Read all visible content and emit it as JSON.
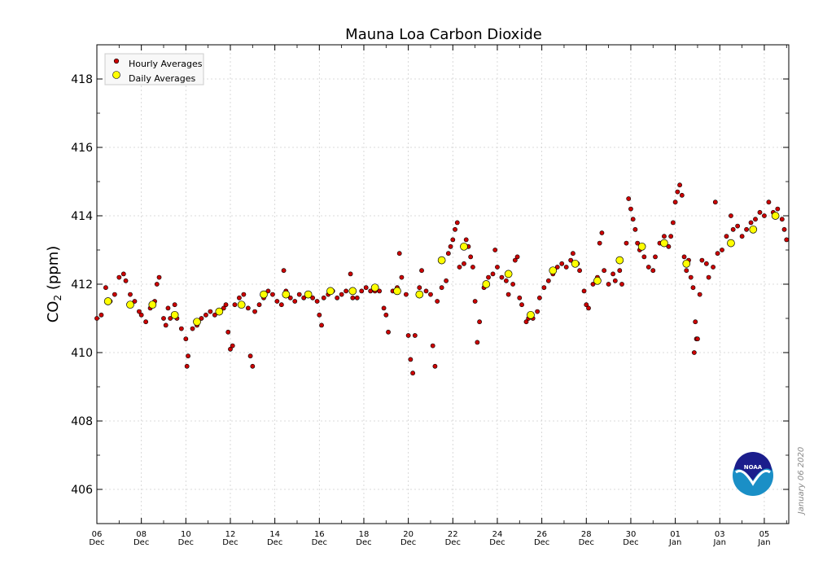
{
  "chart_data": {
    "type": "scatter",
    "title": "Mauna Loa Carbon Dioxide",
    "ylabel_main": "CO",
    "ylabel_sub": "2",
    "ylabel_units": " (ppm)",
    "xlabel": "",
    "ylim": [
      405,
      419
    ],
    "xlim": [
      0,
      31.1
    ],
    "y_ticks": [
      406,
      408,
      410,
      412,
      414,
      416,
      418
    ],
    "x_ticks": [
      {
        "x": 0,
        "day": "06",
        "month": "Dec"
      },
      {
        "x": 2,
        "day": "08",
        "month": "Dec"
      },
      {
        "x": 4,
        "day": "10",
        "month": "Dec"
      },
      {
        "x": 6,
        "day": "12",
        "month": "Dec"
      },
      {
        "x": 8,
        "day": "14",
        "month": "Dec"
      },
      {
        "x": 10,
        "day": "16",
        "month": "Dec"
      },
      {
        "x": 12,
        "day": "18",
        "month": "Dec"
      },
      {
        "x": 14,
        "day": "20",
        "month": "Dec"
      },
      {
        "x": 16,
        "day": "22",
        "month": "Dec"
      },
      {
        "x": 18,
        "day": "24",
        "month": "Dec"
      },
      {
        "x": 20,
        "day": "26",
        "month": "Dec"
      },
      {
        "x": 22,
        "day": "28",
        "month": "Dec"
      },
      {
        "x": 24,
        "day": "30",
        "month": "Dec"
      },
      {
        "x": 26,
        "day": "01",
        "month": "Jan"
      },
      {
        "x": 28,
        "day": "03",
        "month": "Jan"
      },
      {
        "x": 30,
        "day": "05",
        "month": "Jan"
      }
    ],
    "legend": {
      "position": "top-left",
      "entries": [
        "Hourly Averages",
        "Daily Averages"
      ]
    },
    "series": [
      {
        "name": "Hourly Averages",
        "color": "#cc0000",
        "points": [
          [
            0.0,
            411.0
          ],
          [
            0.2,
            411.1
          ],
          [
            0.4,
            411.9
          ],
          [
            0.6,
            411.5
          ],
          [
            0.8,
            411.7
          ],
          [
            1.0,
            412.2
          ],
          [
            1.2,
            412.3
          ],
          [
            1.3,
            412.1
          ],
          [
            1.5,
            411.7
          ],
          [
            1.7,
            411.5
          ],
          [
            1.9,
            411.2
          ],
          [
            2.0,
            411.1
          ],
          [
            2.2,
            410.9
          ],
          [
            2.4,
            411.3
          ],
          [
            2.6,
            411.5
          ],
          [
            2.7,
            412.0
          ],
          [
            2.8,
            412.2
          ],
          [
            3.0,
            411.0
          ],
          [
            3.1,
            410.8
          ],
          [
            3.2,
            411.3
          ],
          [
            3.3,
            411.0
          ],
          [
            3.5,
            411.4
          ],
          [
            3.6,
            411.0
          ],
          [
            3.8,
            410.7
          ],
          [
            4.0,
            410.4
          ],
          [
            4.05,
            409.6
          ],
          [
            4.1,
            409.9
          ],
          [
            4.3,
            410.7
          ],
          [
            4.5,
            410.8
          ],
          [
            4.7,
            411.0
          ],
          [
            4.9,
            411.1
          ],
          [
            5.1,
            411.2
          ],
          [
            5.3,
            411.1
          ],
          [
            5.5,
            411.2
          ],
          [
            5.7,
            411.3
          ],
          [
            5.8,
            411.4
          ],
          [
            5.9,
            410.6
          ],
          [
            6.0,
            410.1
          ],
          [
            6.1,
            410.2
          ],
          [
            6.2,
            411.4
          ],
          [
            6.4,
            411.6
          ],
          [
            6.6,
            411.7
          ],
          [
            6.8,
            411.3
          ],
          [
            6.9,
            409.9
          ],
          [
            7.0,
            409.6
          ],
          [
            7.1,
            411.2
          ],
          [
            7.3,
            411.4
          ],
          [
            7.5,
            411.6
          ],
          [
            7.7,
            411.8
          ],
          [
            7.9,
            411.7
          ],
          [
            8.1,
            411.5
          ],
          [
            8.3,
            411.4
          ],
          [
            8.4,
            412.4
          ],
          [
            8.5,
            411.8
          ],
          [
            8.7,
            411.6
          ],
          [
            8.9,
            411.5
          ],
          [
            9.1,
            411.7
          ],
          [
            9.3,
            411.6
          ],
          [
            9.5,
            411.7
          ],
          [
            9.7,
            411.6
          ],
          [
            9.9,
            411.5
          ],
          [
            10.0,
            411.1
          ],
          [
            10.1,
            410.8
          ],
          [
            10.2,
            411.6
          ],
          [
            10.4,
            411.7
          ],
          [
            10.6,
            411.8
          ],
          [
            10.8,
            411.6
          ],
          [
            11.0,
            411.7
          ],
          [
            11.2,
            411.8
          ],
          [
            11.4,
            412.3
          ],
          [
            11.5,
            411.6
          ],
          [
            11.7,
            411.6
          ],
          [
            11.9,
            411.8
          ],
          [
            12.1,
            411.9
          ],
          [
            12.3,
            411.8
          ],
          [
            12.5,
            411.8
          ],
          [
            12.7,
            411.8
          ],
          [
            12.9,
            411.3
          ],
          [
            13.0,
            411.1
          ],
          [
            13.1,
            410.6
          ],
          [
            13.3,
            411.8
          ],
          [
            13.5,
            411.9
          ],
          [
            13.6,
            412.9
          ],
          [
            13.7,
            412.2
          ],
          [
            13.9,
            411.7
          ],
          [
            14.0,
            410.5
          ],
          [
            14.1,
            409.8
          ],
          [
            14.2,
            409.4
          ],
          [
            14.3,
            410.5
          ],
          [
            14.5,
            411.9
          ],
          [
            14.6,
            412.4
          ],
          [
            14.8,
            411.8
          ],
          [
            15.0,
            411.7
          ],
          [
            15.1,
            410.2
          ],
          [
            15.2,
            409.6
          ],
          [
            15.3,
            411.5
          ],
          [
            15.5,
            411.9
          ],
          [
            15.7,
            412.1
          ],
          [
            15.8,
            412.9
          ],
          [
            15.9,
            413.1
          ],
          [
            16.0,
            413.3
          ],
          [
            16.1,
            413.6
          ],
          [
            16.2,
            413.8
          ],
          [
            16.3,
            412.5
          ],
          [
            16.5,
            412.6
          ],
          [
            16.6,
            413.3
          ],
          [
            16.7,
            413.1
          ],
          [
            16.8,
            412.8
          ],
          [
            16.9,
            412.5
          ],
          [
            17.0,
            411.5
          ],
          [
            17.1,
            410.3
          ],
          [
            17.2,
            410.9
          ],
          [
            17.4,
            411.9
          ],
          [
            17.6,
            412.2
          ],
          [
            17.8,
            412.3
          ],
          [
            17.9,
            413.0
          ],
          [
            18.0,
            412.5
          ],
          [
            18.2,
            412.2
          ],
          [
            18.4,
            412.1
          ],
          [
            18.5,
            411.7
          ],
          [
            18.7,
            412.0
          ],
          [
            18.8,
            412.7
          ],
          [
            18.9,
            412.8
          ],
          [
            19.0,
            411.6
          ],
          [
            19.1,
            411.4
          ],
          [
            19.3,
            410.9
          ],
          [
            19.4,
            411.0
          ],
          [
            19.6,
            411.0
          ],
          [
            19.8,
            411.2
          ],
          [
            19.9,
            411.6
          ],
          [
            20.1,
            411.9
          ],
          [
            20.3,
            412.1
          ],
          [
            20.5,
            412.3
          ],
          [
            20.7,
            412.5
          ],
          [
            20.9,
            412.6
          ],
          [
            21.1,
            412.5
          ],
          [
            21.3,
            412.7
          ],
          [
            21.4,
            412.9
          ],
          [
            21.6,
            412.6
          ],
          [
            21.7,
            412.4
          ],
          [
            21.9,
            411.8
          ],
          [
            22.0,
            411.4
          ],
          [
            22.1,
            411.3
          ],
          [
            22.3,
            412.0
          ],
          [
            22.5,
            412.2
          ],
          [
            22.6,
            413.2
          ],
          [
            22.7,
            413.5
          ],
          [
            22.8,
            412.4
          ],
          [
            23.0,
            412.0
          ],
          [
            23.2,
            412.3
          ],
          [
            23.3,
            412.1
          ],
          [
            23.5,
            412.4
          ],
          [
            23.6,
            412.0
          ],
          [
            23.8,
            413.2
          ],
          [
            23.9,
            414.5
          ],
          [
            24.0,
            414.2
          ],
          [
            24.1,
            413.9
          ],
          [
            24.2,
            413.6
          ],
          [
            24.3,
            413.2
          ],
          [
            24.4,
            413.0
          ],
          [
            24.6,
            412.8
          ],
          [
            24.8,
            412.5
          ],
          [
            25.0,
            412.4
          ],
          [
            25.1,
            412.8
          ],
          [
            25.3,
            413.2
          ],
          [
            25.5,
            413.4
          ],
          [
            25.7,
            413.1
          ],
          [
            25.8,
            413.4
          ],
          [
            25.9,
            413.8
          ],
          [
            26.0,
            414.4
          ],
          [
            26.1,
            414.7
          ],
          [
            26.2,
            414.9
          ],
          [
            26.3,
            414.6
          ],
          [
            26.4,
            412.8
          ],
          [
            26.5,
            412.4
          ],
          [
            26.6,
            412.7
          ],
          [
            26.7,
            412.2
          ],
          [
            26.8,
            411.9
          ],
          [
            26.9,
            410.9
          ],
          [
            26.95,
            410.4
          ],
          [
            27.0,
            410.4
          ],
          [
            26.85,
            410.0
          ],
          [
            27.1,
            411.7
          ],
          [
            27.2,
            412.7
          ],
          [
            27.4,
            412.6
          ],
          [
            27.5,
            412.2
          ],
          [
            27.7,
            412.5
          ],
          [
            27.8,
            414.4
          ],
          [
            27.9,
            412.9
          ],
          [
            28.1,
            413.0
          ],
          [
            28.3,
            413.4
          ],
          [
            28.5,
            414.0
          ],
          [
            28.6,
            413.6
          ],
          [
            28.8,
            413.7
          ],
          [
            29.0,
            413.4
          ],
          [
            29.2,
            413.6
          ],
          [
            29.4,
            413.8
          ],
          [
            29.6,
            413.9
          ],
          [
            29.8,
            414.1
          ],
          [
            30.0,
            414.0
          ],
          [
            30.2,
            414.4
          ],
          [
            30.4,
            414.1
          ],
          [
            30.6,
            414.2
          ],
          [
            30.8,
            413.9
          ],
          [
            30.9,
            413.6
          ],
          [
            31.0,
            413.3
          ]
        ]
      },
      {
        "name": "Daily Averages",
        "color": "#ffff00",
        "points": [
          [
            0.5,
            411.5
          ],
          [
            1.5,
            411.4
          ],
          [
            2.5,
            411.4
          ],
          [
            3.5,
            411.1
          ],
          [
            4.5,
            410.9
          ],
          [
            5.5,
            411.2
          ],
          [
            6.5,
            411.4
          ],
          [
            7.5,
            411.7
          ],
          [
            8.5,
            411.7
          ],
          [
            9.5,
            411.7
          ],
          [
            10.5,
            411.8
          ],
          [
            11.5,
            411.8
          ],
          [
            12.5,
            411.9
          ],
          [
            13.5,
            411.8
          ],
          [
            14.5,
            411.7
          ],
          [
            15.5,
            412.7
          ],
          [
            16.5,
            413.1
          ],
          [
            17.5,
            412.0
          ],
          [
            18.5,
            412.3
          ],
          [
            19.5,
            411.1
          ],
          [
            20.5,
            412.4
          ],
          [
            21.5,
            412.6
          ],
          [
            22.5,
            412.1
          ],
          [
            23.5,
            412.7
          ],
          [
            24.5,
            413.1
          ],
          [
            25.5,
            413.2
          ],
          [
            26.5,
            412.6
          ],
          [
            28.5,
            413.2
          ],
          [
            29.5,
            413.6
          ],
          [
            30.5,
            414.0
          ]
        ]
      }
    ]
  },
  "credit": "January 06 2020",
  "logo_text": "NOAA"
}
